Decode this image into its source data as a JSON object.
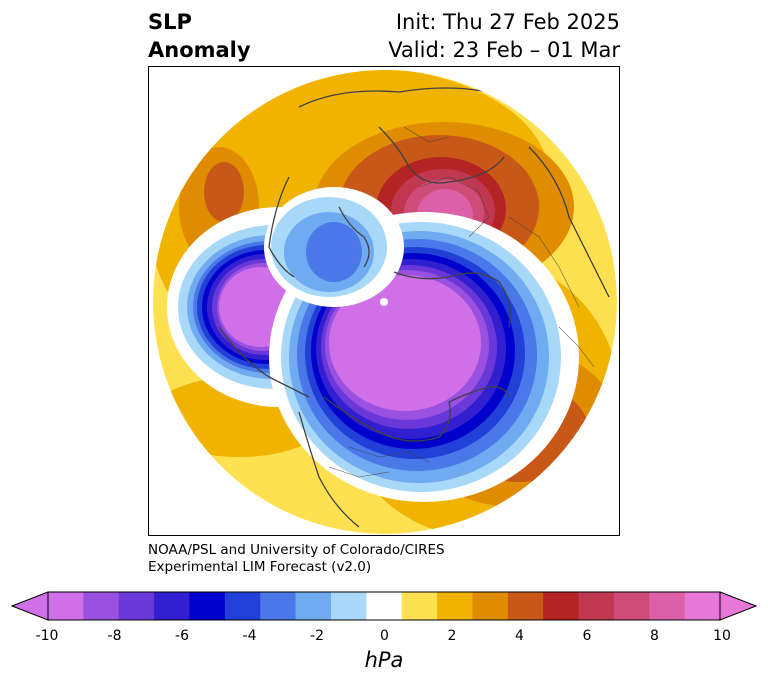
{
  "header": {
    "title_line1": "SLP",
    "title_line2": "Anomaly",
    "init": "Init: Thu 27 Feb 2025",
    "valid": "Valid: 23 Feb – 01 Mar"
  },
  "credit": {
    "line1": "NOAA/PSL and University of Colorado/CIRES",
    "line2": "Experimental LIM Forecast (v2.0)"
  },
  "colorbar": {
    "unit": "hPa",
    "ticks": [
      "-10",
      "-8",
      "-6",
      "-4",
      "-2",
      "0",
      "2",
      "4",
      "6",
      "8",
      "10"
    ],
    "colors": [
      "#d070e8",
      "#9a50e0",
      "#6a38d8",
      "#3220d0",
      "#0000cc",
      "#2040d8",
      "#4a78e8",
      "#70aaf0",
      "#a8d8f8",
      "#ffffff",
      "#ffe050",
      "#f0b400",
      "#e08c00",
      "#c85818",
      "#b42424",
      "#c03850",
      "#d04c78",
      "#dc60a8",
      "#e878d8"
    ],
    "under_color": "#d070e8",
    "over_color": "#e878d8"
  },
  "map": {
    "projection": "north-polar-stereographic",
    "features": [
      "coastlines",
      "country-borders",
      "state-borders"
    ]
  }
}
